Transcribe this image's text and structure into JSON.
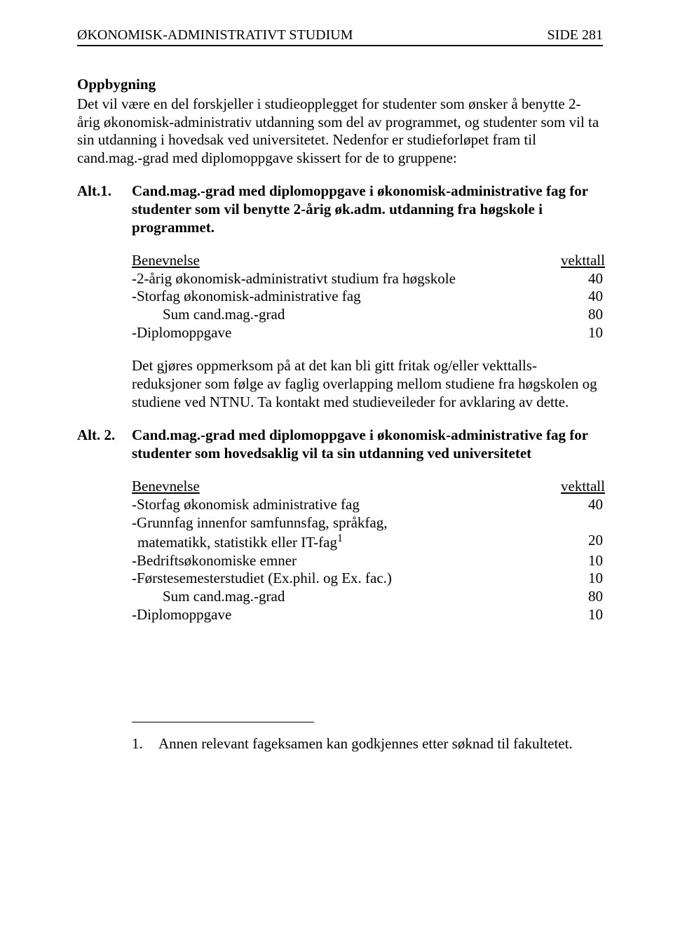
{
  "header": {
    "left": "ØKONOMISK-ADMINISTRATIVT STUDIUM",
    "right": "SIDE 281"
  },
  "section_title": "Oppbygning",
  "intro": "Det vil være en del forskjeller i studieopplegget for studenter som ønsker å benytte 2-årig økonomisk-administrativ utdanning som del av programmet, og studenter som vil ta sin utdanning i hovedsak ved universitetet. Nedenfor er studieforløpet fram til cand.mag.-grad med diplomoppgave skissert for de to gruppene:",
  "alt1": {
    "label": "Alt.1.",
    "title": "Cand.mag.-grad med diplomoppgave i økonomisk-administrative fag for studenter som vil benytte 2-årig øk.adm. utdanning fra høgskole i programmet.",
    "table": {
      "head_left": "Benevnelse",
      "head_right": "vekttall",
      "rows": [
        {
          "label": "-2-årig økonomisk-administrativt studium fra høgskole",
          "value": "40",
          "indent": false
        },
        {
          "label": "-Storfag økonomisk-administrative fag",
          "value": "40",
          "indent": false
        },
        {
          "label": "Sum cand.mag.-grad",
          "value": "80",
          "indent": true
        },
        {
          "label": "-Diplomoppgave",
          "value": "10",
          "indent": false
        }
      ]
    },
    "note": "Det gjøres oppmerksom på at det kan bli gitt fritak og/eller vekttalls-reduksjoner som følge av faglig overlapping mellom studiene fra høgskolen og studiene ved NTNU. Ta kontakt med studieveileder for avklaring av dette."
  },
  "alt2": {
    "label": "Alt. 2.",
    "title": "Cand.mag.-grad med diplomoppgave i økonomisk-administrative fag for studenter som hovedsaklig vil ta sin utdanning ved universitetet",
    "table": {
      "head_left": "Benevnelse",
      "head_right": "vekttall",
      "rows": [
        {
          "label": "-Storfag økonomisk administrative fag",
          "value": "40",
          "indent": false,
          "cont": false
        },
        {
          "label": "-Grunnfag innenfor samfunnsfag, språkfag,",
          "value": "",
          "indent": false,
          "cont": false
        },
        {
          "label": " matematikk, statistikk eller IT-fag",
          "value": "20",
          "indent": false,
          "cont": true,
          "sup": "1"
        },
        {
          "label": "-Bedriftsøkonomiske emner",
          "value": "10",
          "indent": false,
          "cont": false
        },
        {
          "label": "-Førstesemesterstudiet (Ex.phil. og Ex. fac.)",
          "value": "10",
          "indent": false,
          "cont": false
        },
        {
          "label": "Sum cand.mag.-grad",
          "value": "80",
          "indent": true,
          "cont": false
        },
        {
          "label": "-Diplomoppgave",
          "value": "10",
          "indent": false,
          "cont": false
        }
      ]
    }
  },
  "footnote": {
    "num": "1.",
    "text": "Annen relevant fageksamen kan godkjennes etter søknad til fakultetet."
  }
}
